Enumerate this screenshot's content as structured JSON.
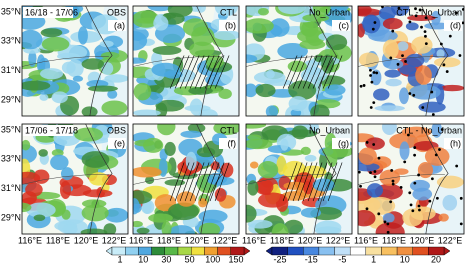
{
  "panels": [
    {
      "period": "16/18 - 17/06",
      "source": "OBS",
      "label": "(a)"
    },
    {
      "source": "CTL",
      "label": "(b)"
    },
    {
      "source": "No_Urban",
      "label": "(c)"
    },
    {
      "source": "CTL - No_Urban",
      "label": "(d)"
    },
    {
      "period": "17/06 - 17/18",
      "source": "OBS",
      "label": "(e)"
    },
    {
      "source": "CTL",
      "label": "(f)"
    },
    {
      "source": "No_Urban",
      "label": "(g)"
    },
    {
      "source": "CTL - No_Urban",
      "label": "(h)"
    }
  ],
  "y_axis_labels": [
    "35°N",
    "33°N",
    "31°N",
    "29°N"
  ],
  "x_axis_labels": [
    "116°E",
    "118°E",
    "120°E",
    "122°E"
  ],
  "colorbars": [
    {
      "ticks": [
        1,
        10,
        30,
        50,
        100,
        150
      ]
    },
    {
      "ticks": [
        -25,
        -15,
        -5,
        1,
        10,
        20
      ]
    }
  ]
}
